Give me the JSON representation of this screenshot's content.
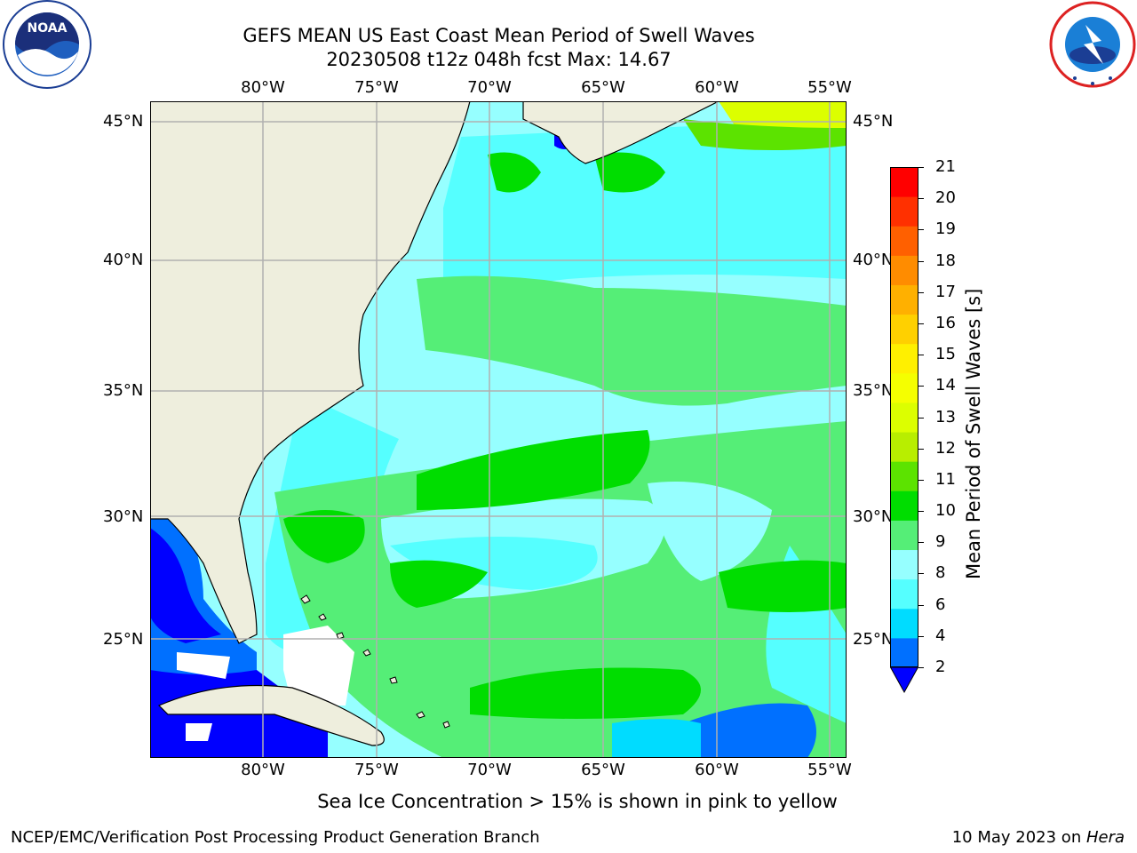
{
  "title": {
    "line1": "GEFS MEAN US East Coast Mean Period of Swell Waves",
    "line2": "20230508 t12z 048h fcst   Max: 14.67"
  },
  "logos": {
    "left": {
      "name": "noaa-logo",
      "text": "NOAA",
      "ring": "NATIONAL OCEANIC AND ATMOSPHERIC ADMINISTRATION · U.S. DEPARTMENT OF COMMERCE"
    },
    "right": {
      "name": "nws-logo",
      "ring": "NATIONAL WEATHER SERVICE"
    }
  },
  "map": {
    "lon_ticks": [
      "80°W",
      "75°W",
      "70°W",
      "65°W",
      "60°W",
      "55°W"
    ],
    "lat_ticks": [
      "45°N",
      "40°N",
      "35°N",
      "30°N",
      "25°N"
    ],
    "grid": true,
    "land_color": "#eeeedd",
    "ice_note": "Sea Ice Concentration > 15% is shown in pink to yellow"
  },
  "colorbar": {
    "label": "Mean Period of Swell Waves [s]",
    "ticks": [
      "21",
      "20",
      "19",
      "18",
      "17",
      "16",
      "15",
      "14",
      "13",
      "12",
      "11",
      "10",
      "9",
      "8",
      "6",
      "4",
      "2"
    ],
    "colors_bottom_to_top": [
      "#0070ff",
      "#00dcff",
      "#55ffff",
      "#96ffff",
      "#55ee77",
      "#00dd00",
      "#5ce300",
      "#b8ee00",
      "#dcff00",
      "#f5ff00",
      "#fff000",
      "#ffd000",
      "#ffb000",
      "#ff8c00",
      "#ff6000",
      "#ff3000",
      "#ff0000"
    ],
    "extend_color": "#0000ff"
  },
  "footer": {
    "left": "NCEP/EMC/Verification Post Processing Product Generation Branch",
    "right_prefix": "10 May 2023 on ",
    "right_italic": "Hera"
  }
}
